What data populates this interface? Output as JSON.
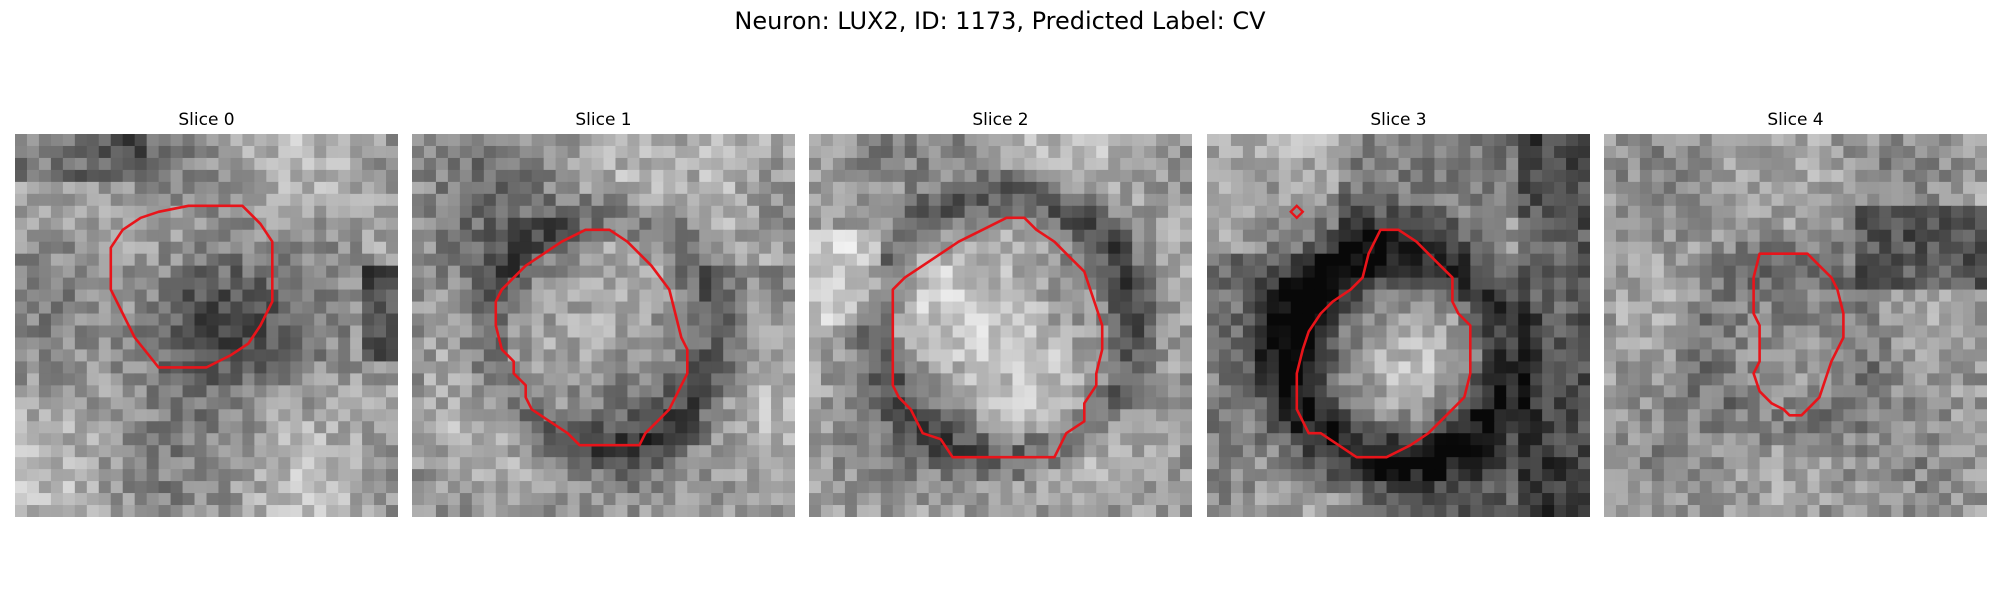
{
  "figure": {
    "suptitle": "Neuron: LUX2, ID: 1173, Predicted Label: CV"
  },
  "style": {
    "contour_color": "#e8141a"
  },
  "panels": [
    {
      "title": "Slice 0",
      "pattern": "dark-center"
    },
    {
      "title": "Slice 1",
      "pattern": "bright-cell"
    },
    {
      "title": "Slice 2",
      "pattern": "bright-cell-large"
    },
    {
      "title": "Slice 3",
      "pattern": "bright-cell-dark-ring"
    },
    {
      "title": "Slice 4",
      "pattern": "small-cell-noisy"
    }
  ]
}
